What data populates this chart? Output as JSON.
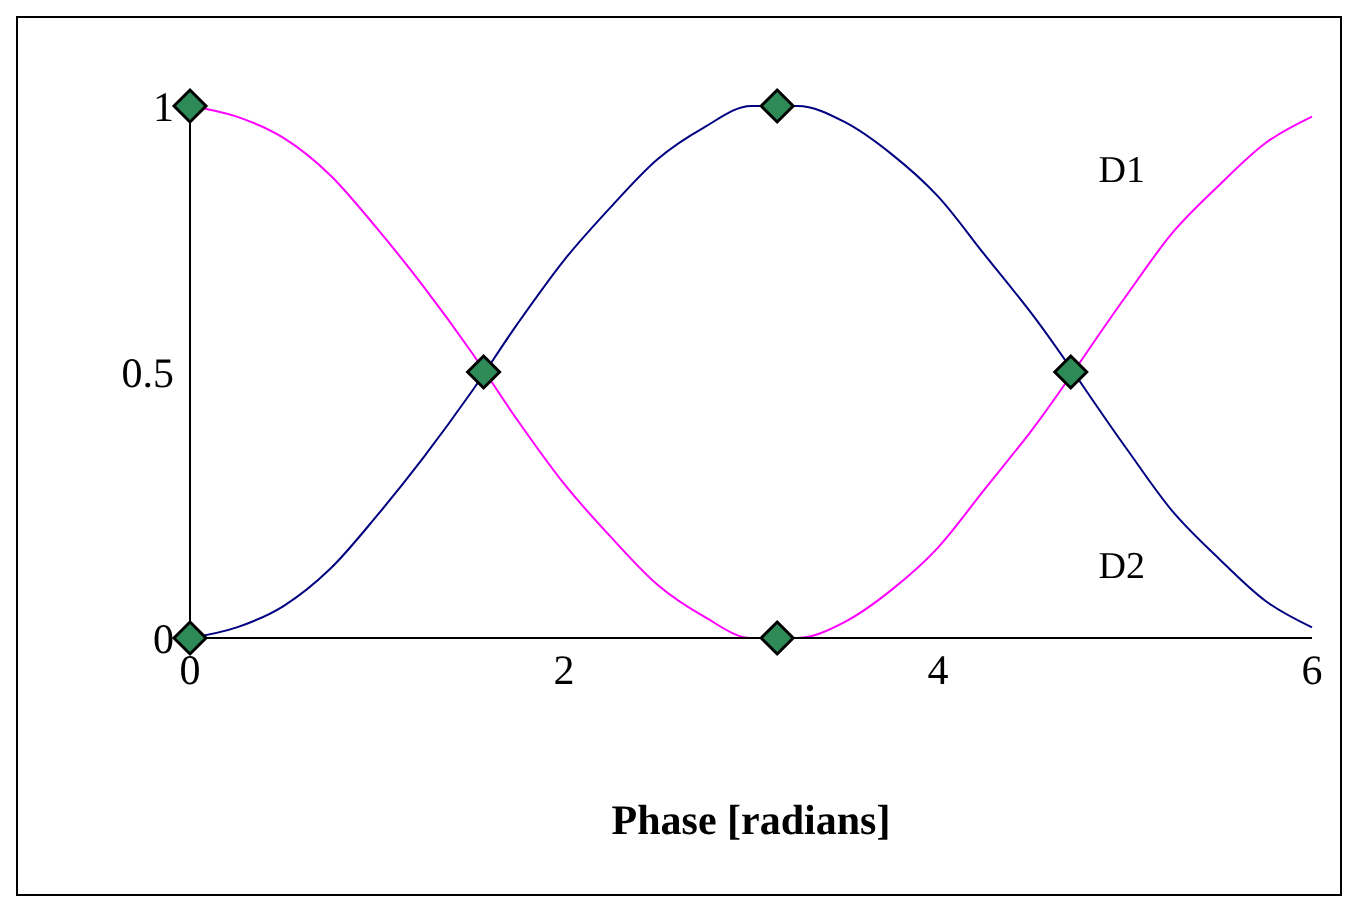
{
  "chart_data": {
    "type": "line",
    "xlabel": "Phase [radians]",
    "xlim": [
      0,
      6
    ],
    "xticks": [
      0,
      2,
      4,
      6
    ],
    "ylim": [
      0,
      1
    ],
    "yticks": [
      0,
      0.5,
      1
    ],
    "grid": false,
    "legend": false,
    "line_style": "solid",
    "series": [
      {
        "name": "D1",
        "color": "#ff00ff",
        "marker": "none",
        "x": [
          0,
          0.25,
          0.5,
          0.75,
          1,
          1.25,
          1.5,
          1.75,
          2,
          2.25,
          2.5,
          2.75,
          3,
          3.25,
          3.5,
          3.75,
          4,
          4.25,
          4.5,
          5,
          5.25,
          5.5,
          5.75,
          6
        ],
        "values": [
          1,
          0.98,
          0.94,
          0.87,
          0.77,
          0.66,
          0.54,
          0.41,
          0.29,
          0.19,
          0.1,
          0.04,
          0,
          0,
          0.03,
          0.09,
          0.17,
          0.28,
          0.39,
          0.64,
          0.76,
          0.85,
          0.93,
          0.98
        ]
      },
      {
        "name": "D2",
        "color": "#000080",
        "marker": "none",
        "x": [
          0,
          0.25,
          0.5,
          0.75,
          1,
          1.25,
          1.5,
          1.75,
          2,
          2.25,
          2.5,
          2.75,
          3,
          3.25,
          3.5,
          3.75,
          4,
          4.25,
          4.5,
          5,
          5.25,
          5.5,
          5.75,
          6
        ],
        "values": [
          0,
          0.02,
          0.06,
          0.13,
          0.23,
          0.34,
          0.46,
          0.59,
          0.71,
          0.81,
          0.9,
          0.96,
          1,
          1,
          0.97,
          0.91,
          0.83,
          0.72,
          0.61,
          0.36,
          0.24,
          0.15,
          0.07,
          0.02
        ]
      },
      {
        "type": "scatter",
        "color": "#2e8b57",
        "marker": "diamond",
        "x": [
          0,
          0,
          1.57,
          3.14,
          3.14,
          4.71
        ],
        "values": [
          1,
          0,
          0.5,
          1,
          0,
          0.5
        ]
      }
    ]
  }
}
